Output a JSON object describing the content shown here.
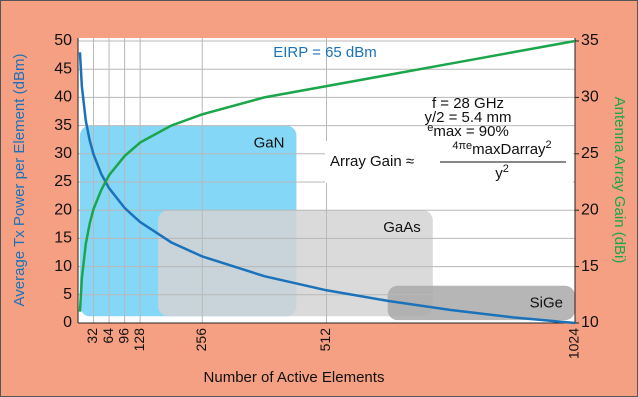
{
  "chart_data": {
    "type": "line",
    "xlabel": "Number of Active Elements",
    "ylabel": "Average Tx Power per Element (dBm)",
    "y2label": "Antenna Array Gain (dBi)",
    "x": [
      4,
      8,
      16,
      24,
      32,
      48,
      64,
      96,
      128,
      192,
      256,
      384,
      512,
      640,
      768,
      896,
      1024
    ],
    "series": [
      {
        "name": "Average Tx Power per Element",
        "color": "#1b72bb",
        "values": [
          48.0,
          41.9,
          35.9,
          32.4,
          29.9,
          26.4,
          23.9,
          20.4,
          17.9,
          14.3,
          11.8,
          8.3,
          5.8,
          3.9,
          2.3,
          1.0,
          0.0
        ]
      },
      {
        "name": "Antenna Array Gain",
        "color": "#1ba64b",
        "axis": "y2",
        "values": [
          11.0,
          14.0,
          17.0,
          18.8,
          20.1,
          21.8,
          23.1,
          24.8,
          26.0,
          27.5,
          28.5,
          30.0,
          31.0,
          32.0,
          33.0,
          34.0,
          35.0
        ]
      }
    ],
    "xlim": [
      0,
      1024
    ],
    "xticks": [
      32,
      64,
      96,
      128,
      256,
      512,
      1024
    ],
    "ylim": [
      0,
      50
    ],
    "yticks": [
      0,
      5,
      10,
      15,
      20,
      25,
      30,
      35,
      40,
      45,
      50
    ],
    "y2lim": [
      10,
      35
    ],
    "y2ticks": [
      10,
      15,
      20,
      25,
      30,
      35
    ],
    "grid": true,
    "regions": [
      {
        "label": "GaN",
        "color": "#6fd0f4",
        "x": [
          4,
          450
        ],
        "y": [
          1.2,
          35
        ]
      },
      {
        "label": "GaAs",
        "color": "#d4d4d4",
        "x": [
          165,
          731
        ],
        "y": [
          1.2,
          20
        ]
      },
      {
        "label": "SiGe",
        "color": "#a9a9a9",
        "x": [
          638,
          1024
        ],
        "y": [
          0.5,
          6.6
        ]
      }
    ],
    "eirp": "EIRP = 65 dBm",
    "params": [
      "f = 28 GHz",
      "y/2 = 5.4 mm"
    ],
    "efficiency": {
      "symbol": "e",
      "sub": "max",
      "rest": " = 90%"
    },
    "formula": {
      "lhs": "Array Gain ≈",
      "num": [
        "4π",
        "e",
        "max",
        "D",
        "array",
        "2"
      ],
      "den": [
        "y",
        "2"
      ]
    }
  }
}
